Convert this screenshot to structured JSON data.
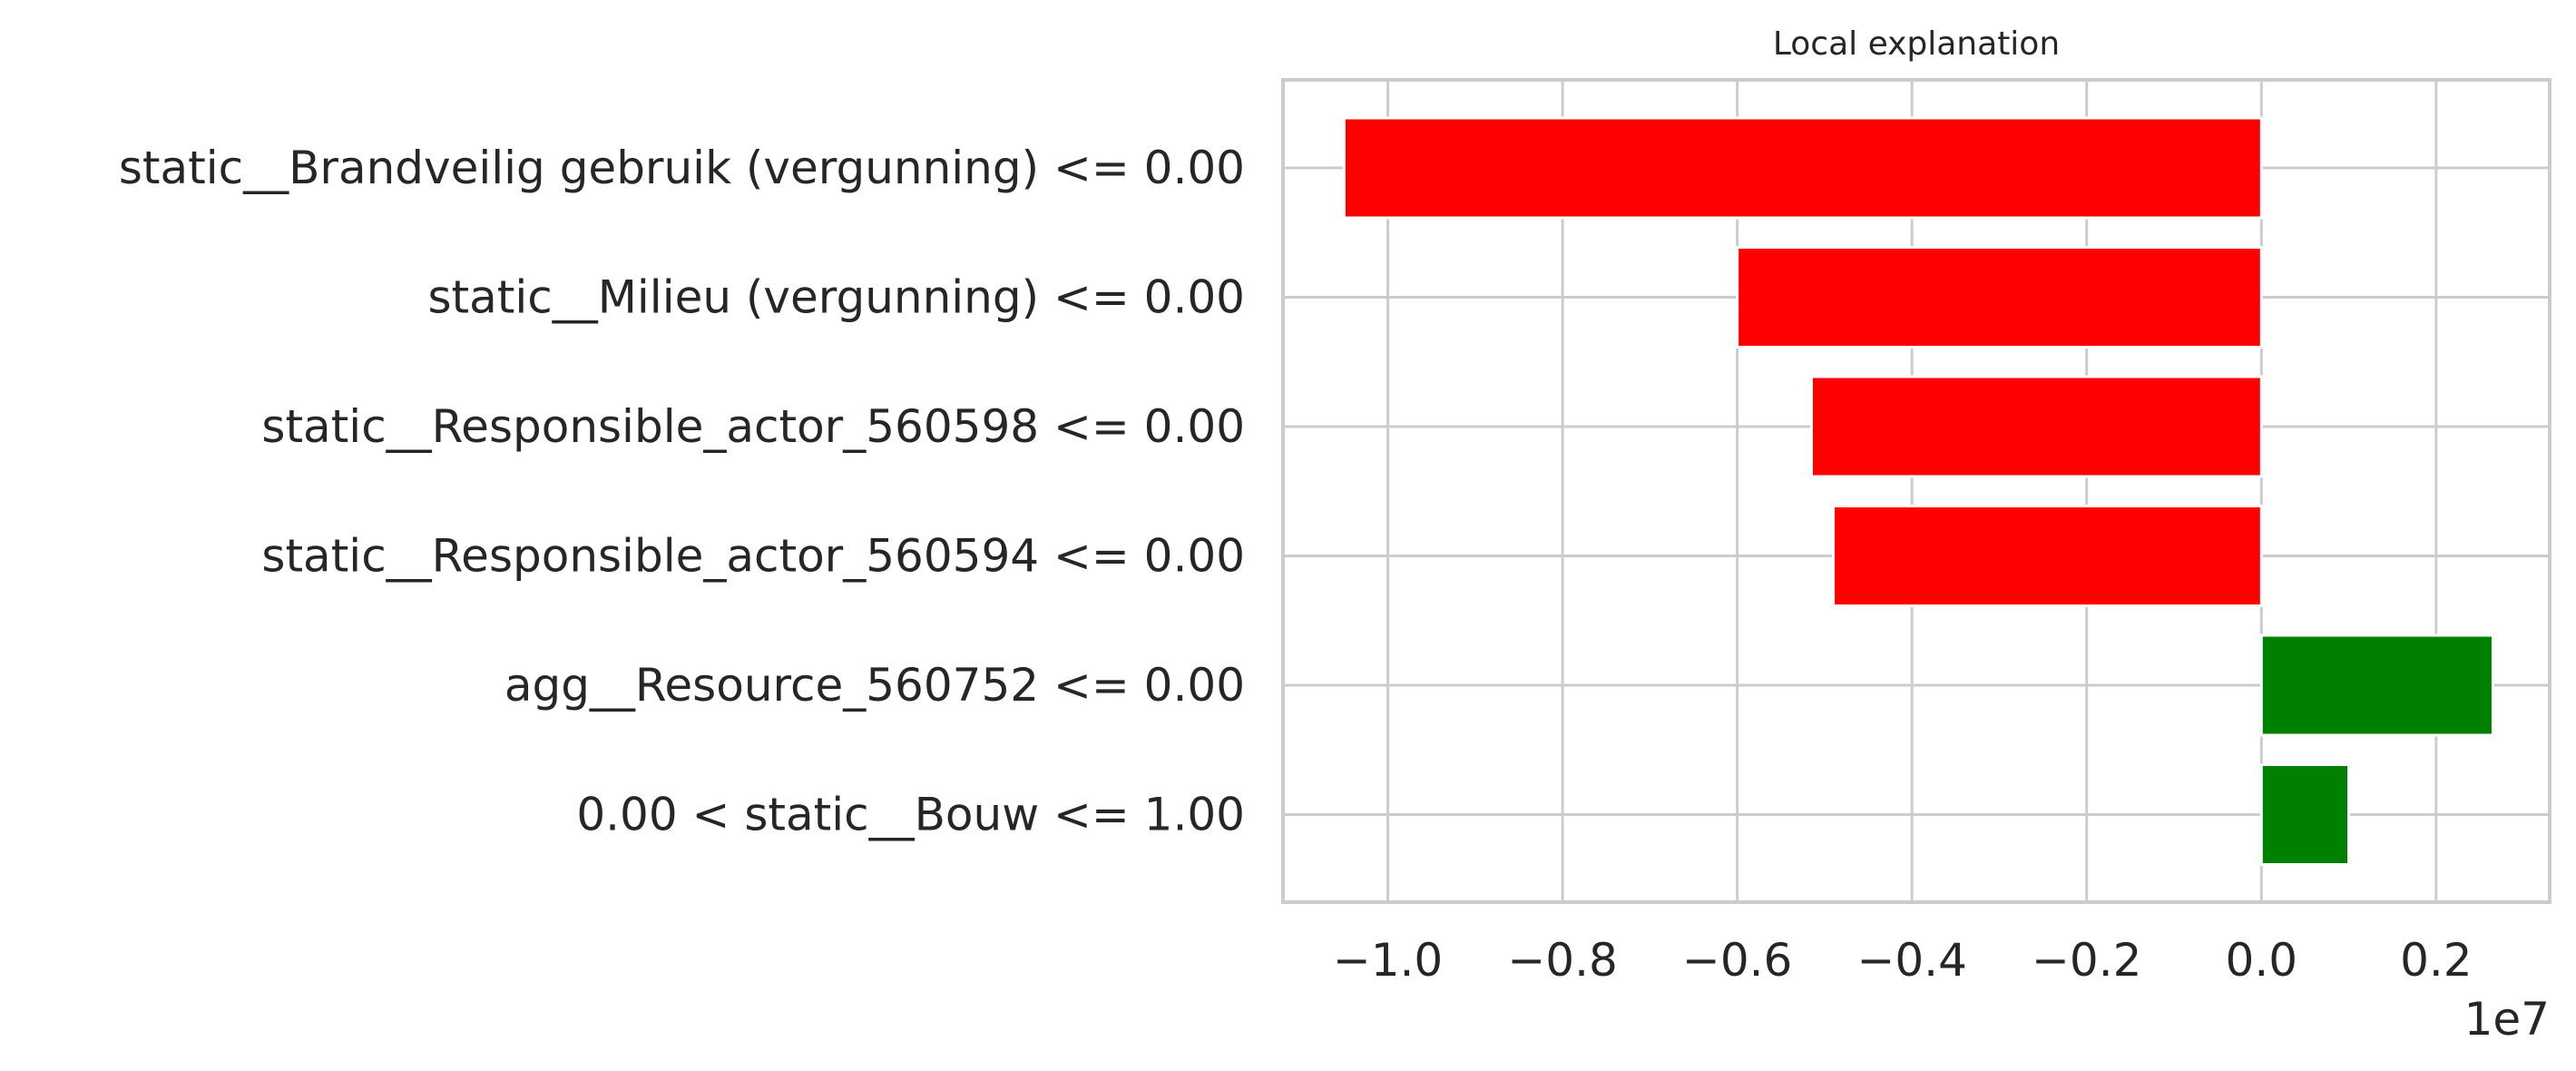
{
  "chart_data": {
    "type": "bar",
    "orientation": "horizontal",
    "title": "Local explanation",
    "xlabel": "",
    "ylabel": "",
    "categories": [
      "static__Brandveilig gebruik (vergunning) <= 0.00",
      "static__Milieu (vergunning) <= 0.00",
      "static__Responsible_actor_560598 <= 0.00",
      "static__Responsible_actor_560594 <= 0.00",
      "agg__Resource_560752 <= 0.00",
      "0.00 < static__Bouw <= 1.00"
    ],
    "values": [
      -10500000,
      -6000000,
      -5150000,
      -4900000,
      2650000,
      1000000
    ],
    "x_ticks": [
      -1.0,
      -0.8,
      -0.6,
      -0.4,
      -0.2,
      0.0,
      0.2
    ],
    "x_tick_labels": [
      "−1.0",
      "−0.8",
      "−0.6",
      "−0.4",
      "−0.2",
      "0.0",
      "0.2"
    ],
    "x_offset_label": "1e7",
    "xlim": [
      -11200000,
      3300000
    ],
    "grid": true,
    "colors": {
      "negative": "#ff0000",
      "positive": "#008000",
      "grid": "#cccccc",
      "frame": "#cccccc",
      "text": "#262626"
    }
  }
}
